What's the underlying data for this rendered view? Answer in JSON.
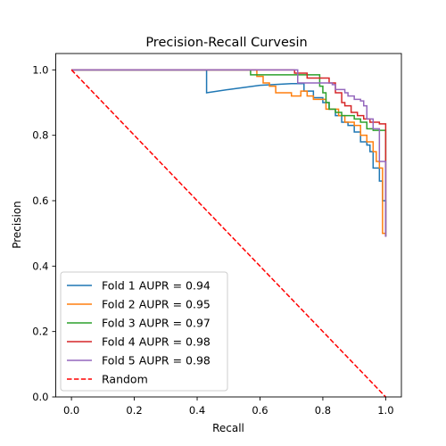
{
  "chart_data": {
    "type": "line",
    "title": "Precision-Recall Curvesin",
    "xlabel": "Recall",
    "ylabel": "Precision",
    "xlim": [
      -0.05,
      1.05
    ],
    "ylim": [
      0.0,
      1.05
    ],
    "xticks": [
      "0.0",
      "0.2",
      "0.4",
      "0.6",
      "0.8",
      "1.0"
    ],
    "yticks": [
      "0.0",
      "0.2",
      "0.4",
      "0.6",
      "0.8",
      "1.0"
    ],
    "grid": false,
    "legend_position": "lower-left",
    "series": [
      {
        "name": "Fold 1 AUPR = 0.94",
        "color": "#1f77b4",
        "style": "solid",
        "points": [
          [
            0.0,
            1.0
          ],
          [
            0.43,
            1.0
          ],
          [
            0.43,
            0.93
          ],
          [
            0.5,
            0.94
          ],
          [
            0.6,
            0.953
          ],
          [
            0.7,
            0.958
          ],
          [
            0.74,
            0.958
          ],
          [
            0.74,
            0.935
          ],
          [
            0.77,
            0.935
          ],
          [
            0.77,
            0.915
          ],
          [
            0.8,
            0.915
          ],
          [
            0.8,
            0.9
          ],
          [
            0.82,
            0.9
          ],
          [
            0.82,
            0.88
          ],
          [
            0.84,
            0.88
          ],
          [
            0.84,
            0.86
          ],
          [
            0.86,
            0.86
          ],
          [
            0.86,
            0.84
          ],
          [
            0.88,
            0.84
          ],
          [
            0.88,
            0.83
          ],
          [
            0.9,
            0.83
          ],
          [
            0.9,
            0.81
          ],
          [
            0.92,
            0.81
          ],
          [
            0.92,
            0.78
          ],
          [
            0.94,
            0.78
          ],
          [
            0.94,
            0.77
          ],
          [
            0.95,
            0.77
          ],
          [
            0.95,
            0.75
          ],
          [
            0.96,
            0.75
          ],
          [
            0.96,
            0.7
          ],
          [
            0.98,
            0.7
          ],
          [
            0.98,
            0.66
          ],
          [
            0.99,
            0.66
          ],
          [
            0.99,
            0.6
          ],
          [
            1.0,
            0.6
          ],
          [
            1.0,
            0.49
          ]
        ]
      },
      {
        "name": "Fold 2 AUPR = 0.95",
        "color": "#ff7f0e",
        "style": "solid",
        "points": [
          [
            0.0,
            1.0
          ],
          [
            0.59,
            1.0
          ],
          [
            0.59,
            0.98
          ],
          [
            0.61,
            0.98
          ],
          [
            0.61,
            0.96
          ],
          [
            0.63,
            0.96
          ],
          [
            0.63,
            0.95
          ],
          [
            0.65,
            0.95
          ],
          [
            0.65,
            0.93
          ],
          [
            0.7,
            0.93
          ],
          [
            0.7,
            0.92
          ],
          [
            0.73,
            0.92
          ],
          [
            0.73,
            0.935
          ],
          [
            0.75,
            0.935
          ],
          [
            0.75,
            0.92
          ],
          [
            0.77,
            0.92
          ],
          [
            0.77,
            0.91
          ],
          [
            0.81,
            0.91
          ],
          [
            0.81,
            0.88
          ],
          [
            0.85,
            0.88
          ],
          [
            0.85,
            0.86
          ],
          [
            0.87,
            0.86
          ],
          [
            0.87,
            0.84
          ],
          [
            0.9,
            0.84
          ],
          [
            0.9,
            0.83
          ],
          [
            0.92,
            0.83
          ],
          [
            0.92,
            0.8
          ],
          [
            0.94,
            0.8
          ],
          [
            0.94,
            0.78
          ],
          [
            0.96,
            0.78
          ],
          [
            0.96,
            0.75
          ],
          [
            0.97,
            0.75
          ],
          [
            0.97,
            0.72
          ],
          [
            0.98,
            0.72
          ],
          [
            0.98,
            0.7
          ],
          [
            0.99,
            0.7
          ],
          [
            0.99,
            0.5
          ],
          [
            1.0,
            0.5
          ]
        ]
      },
      {
        "name": "Fold 3 AUPR = 0.97",
        "color": "#2ca02c",
        "style": "solid",
        "points": [
          [
            0.0,
            1.0
          ],
          [
            0.57,
            1.0
          ],
          [
            0.57,
            0.985
          ],
          [
            0.79,
            0.985
          ],
          [
            0.79,
            0.95
          ],
          [
            0.8,
            0.95
          ],
          [
            0.8,
            0.93
          ],
          [
            0.81,
            0.93
          ],
          [
            0.81,
            0.9
          ],
          [
            0.82,
            0.9
          ],
          [
            0.82,
            0.88
          ],
          [
            0.84,
            0.88
          ],
          [
            0.84,
            0.87
          ],
          [
            0.86,
            0.87
          ],
          [
            0.86,
            0.86
          ],
          [
            0.9,
            0.86
          ],
          [
            0.9,
            0.85
          ],
          [
            0.92,
            0.85
          ],
          [
            0.92,
            0.84
          ],
          [
            0.94,
            0.84
          ],
          [
            0.94,
            0.82
          ],
          [
            0.96,
            0.82
          ],
          [
            0.96,
            0.815
          ],
          [
            1.0,
            0.815
          ],
          [
            1.0,
            0.49
          ]
        ]
      },
      {
        "name": "Fold 4 AUPR = 0.98",
        "color": "#d62728",
        "style": "solid",
        "points": [
          [
            0.0,
            1.0
          ],
          [
            0.71,
            1.0
          ],
          [
            0.71,
            0.99
          ],
          [
            0.75,
            0.99
          ],
          [
            0.75,
            0.975
          ],
          [
            0.82,
            0.975
          ],
          [
            0.82,
            0.96
          ],
          [
            0.84,
            0.96
          ],
          [
            0.84,
            0.93
          ],
          [
            0.86,
            0.93
          ],
          [
            0.86,
            0.9
          ],
          [
            0.87,
            0.9
          ],
          [
            0.87,
            0.89
          ],
          [
            0.89,
            0.89
          ],
          [
            0.89,
            0.87
          ],
          [
            0.91,
            0.87
          ],
          [
            0.91,
            0.86
          ],
          [
            0.93,
            0.86
          ],
          [
            0.93,
            0.85
          ],
          [
            0.95,
            0.85
          ],
          [
            0.95,
            0.84
          ],
          [
            0.98,
            0.84
          ],
          [
            0.98,
            0.835
          ],
          [
            1.0,
            0.835
          ],
          [
            1.0,
            0.49
          ]
        ]
      },
      {
        "name": "Fold 5 AUPR = 0.98",
        "color": "#9467bd",
        "style": "solid",
        "points": [
          [
            0.0,
            1.0
          ],
          [
            0.72,
            1.0
          ],
          [
            0.72,
            0.96
          ],
          [
            0.83,
            0.96
          ],
          [
            0.83,
            0.955
          ],
          [
            0.84,
            0.955
          ],
          [
            0.84,
            0.94
          ],
          [
            0.87,
            0.94
          ],
          [
            0.87,
            0.93
          ],
          [
            0.88,
            0.93
          ],
          [
            0.88,
            0.92
          ],
          [
            0.9,
            0.92
          ],
          [
            0.9,
            0.91
          ],
          [
            0.92,
            0.91
          ],
          [
            0.92,
            0.905
          ],
          [
            0.93,
            0.905
          ],
          [
            0.93,
            0.89
          ],
          [
            0.94,
            0.89
          ],
          [
            0.94,
            0.85
          ],
          [
            0.96,
            0.85
          ],
          [
            0.96,
            0.82
          ],
          [
            0.98,
            0.82
          ],
          [
            0.98,
            0.72
          ],
          [
            1.0,
            0.72
          ],
          [
            1.0,
            0.49
          ]
        ]
      },
      {
        "name": "Random",
        "color": "#ff0000",
        "style": "dashed",
        "points": [
          [
            0.0,
            1.0
          ],
          [
            1.0,
            0.0
          ]
        ]
      }
    ]
  }
}
